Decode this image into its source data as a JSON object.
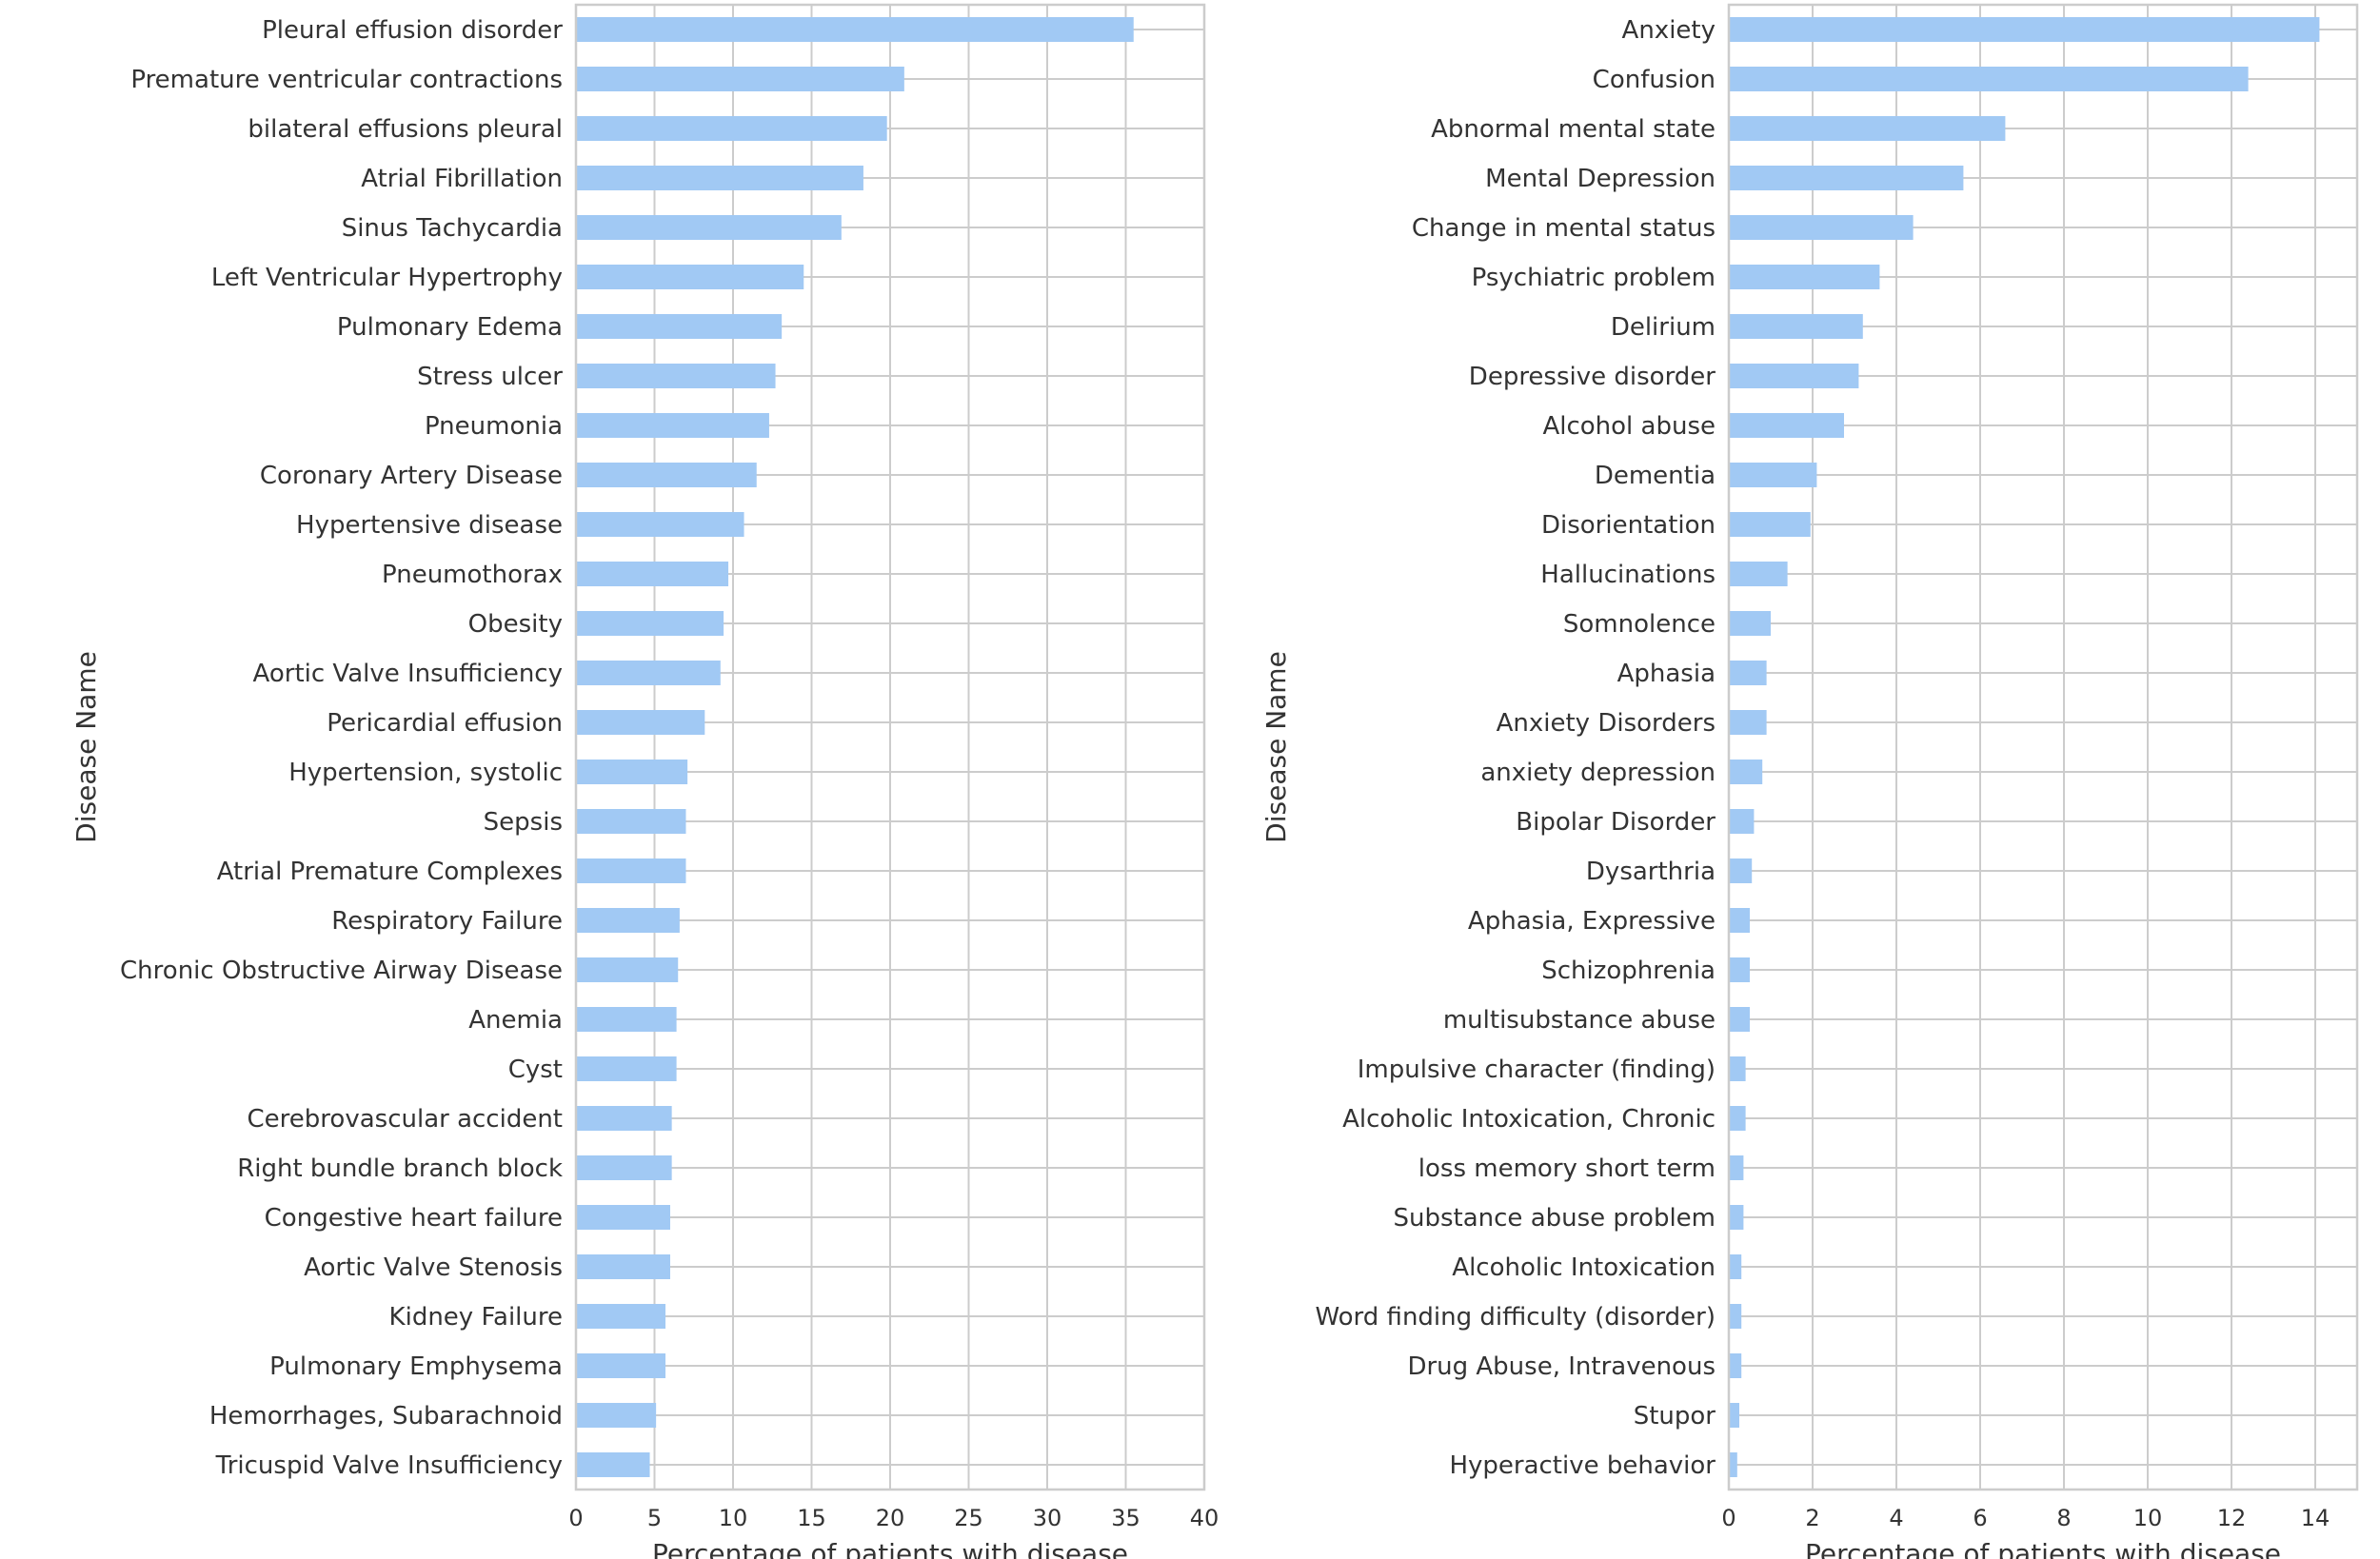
{
  "chart_data": [
    {
      "type": "bar",
      "orientation": "horizontal",
      "xlabel": "Percentage of patients with disease",
      "ylabel": "Disease Name",
      "xlim": [
        0,
        40
      ],
      "xticks": [
        "0",
        "5",
        "10",
        "15",
        "20",
        "25",
        "30",
        "35",
        "40"
      ],
      "grid": true,
      "bar_color": "#a1c9f4",
      "categories": [
        "Pleural effusion disorder",
        "Premature ventricular contractions",
        "bilateral effusions pleural",
        "Atrial Fibrillation",
        "Sinus Tachycardia",
        "Left Ventricular Hypertrophy",
        "Pulmonary Edema",
        "Stress ulcer",
        "Pneumonia",
        "Coronary Artery Disease",
        "Hypertensive disease",
        "Pneumothorax",
        "Obesity",
        "Aortic Valve Insufficiency",
        "Pericardial effusion",
        "Hypertension, systolic",
        "Sepsis",
        "Atrial Premature Complexes",
        "Respiratory Failure",
        "Chronic Obstructive Airway Disease",
        "Anemia",
        "Cyst",
        "Cerebrovascular accident",
        "Right bundle branch block",
        "Congestive heart failure",
        "Aortic Valve Stenosis",
        "Kidney Failure",
        "Pulmonary Emphysema",
        "Hemorrhages, Subarachnoid",
        "Tricuspid Valve Insufficiency"
      ],
      "values": [
        35.5,
        20.9,
        19.8,
        18.3,
        16.9,
        14.5,
        13.1,
        12.7,
        12.3,
        11.5,
        10.7,
        9.7,
        9.4,
        9.2,
        8.2,
        7.1,
        7.0,
        7.0,
        6.6,
        6.5,
        6.4,
        6.4,
        6.1,
        6.1,
        6.0,
        6.0,
        5.7,
        5.7,
        5.1,
        4.7
      ]
    },
    {
      "type": "bar",
      "orientation": "horizontal",
      "xlabel": "Percentage of patients with disease",
      "ylabel": "Disease Name",
      "xlim": [
        0,
        15
      ],
      "xticks": [
        "0",
        "2",
        "4",
        "6",
        "8",
        "10",
        "12",
        "14"
      ],
      "grid": true,
      "bar_color": "#a1c9f4",
      "categories": [
        "Anxiety",
        "Confusion",
        "Abnormal mental state",
        "Mental Depression",
        "Change in mental status",
        "Psychiatric problem",
        "Delirium",
        "Depressive disorder",
        "Alcohol abuse",
        "Dementia",
        "Disorientation",
        "Hallucinations",
        "Somnolence",
        "Aphasia",
        "Anxiety Disorders",
        "anxiety depression",
        "Bipolar Disorder",
        "Dysarthria",
        "Aphasia, Expressive",
        "Schizophrenia",
        "multisubstance abuse",
        "Impulsive character (finding)",
        "Alcoholic Intoxication, Chronic",
        "loss memory short term",
        "Substance abuse problem",
        "Alcoholic Intoxication",
        "Word finding difficulty (disorder)",
        "Drug Abuse, Intravenous",
        "Stupor",
        "Hyperactive behavior"
      ],
      "values": [
        14.1,
        12.4,
        6.6,
        5.6,
        4.4,
        3.6,
        3.2,
        3.1,
        2.75,
        2.1,
        1.95,
        1.4,
        1.0,
        0.9,
        0.9,
        0.8,
        0.6,
        0.55,
        0.5,
        0.5,
        0.5,
        0.4,
        0.4,
        0.35,
        0.35,
        0.3,
        0.3,
        0.3,
        0.25,
        0.2
      ]
    }
  ]
}
